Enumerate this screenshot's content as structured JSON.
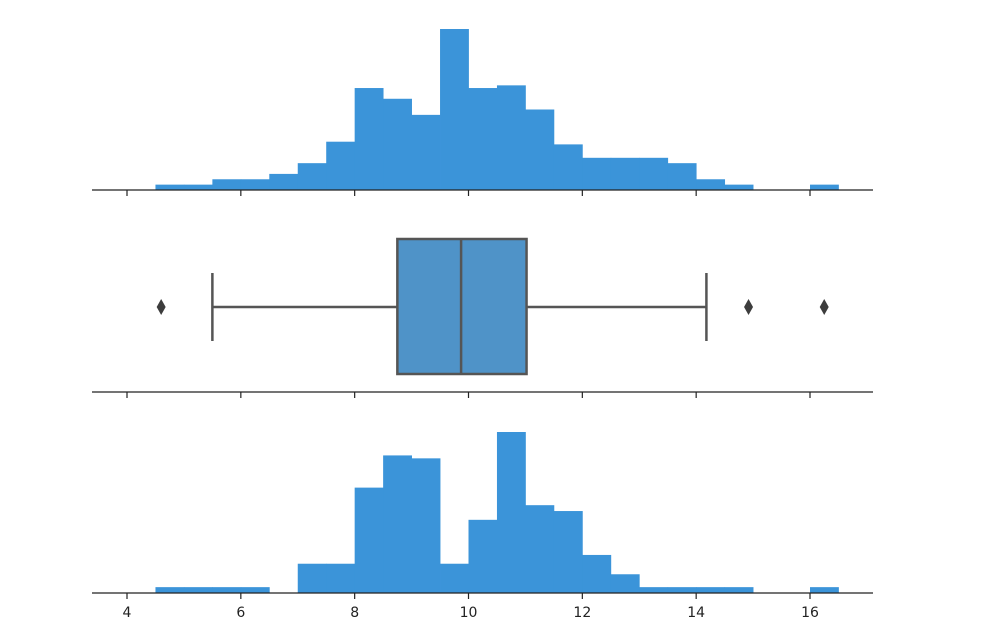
{
  "chart_data": [
    {
      "type": "histogram",
      "title": "",
      "xlabel": "",
      "ylabel": "",
      "xlim": [
        3.4,
        17.1
      ],
      "grid": false,
      "color": "#3b94d9",
      "bin_width": 0.5,
      "bins": [
        {
          "x0": 4.5,
          "x1": 5.0,
          "count": 1
        },
        {
          "x0": 5.0,
          "x1": 5.5,
          "count": 1
        },
        {
          "x0": 5.5,
          "x1": 6.0,
          "count": 2
        },
        {
          "x0": 6.0,
          "x1": 6.5,
          "count": 2
        },
        {
          "x0": 6.5,
          "x1": 7.0,
          "count": 3
        },
        {
          "x0": 7.0,
          "x1": 7.5,
          "count": 5
        },
        {
          "x0": 7.5,
          "x1": 8.0,
          "count": 9
        },
        {
          "x0": 8.0,
          "x1": 8.5,
          "count": 19
        },
        {
          "x0": 8.5,
          "x1": 9.0,
          "count": 17
        },
        {
          "x0": 9.0,
          "x1": 9.5,
          "count": 14
        },
        {
          "x0": 9.5,
          "x1": 10.0,
          "count": 30
        },
        {
          "x0": 10.0,
          "x1": 10.5,
          "count": 19
        },
        {
          "x0": 10.5,
          "x1": 11.0,
          "count": 19.5
        },
        {
          "x0": 11.0,
          "x1": 11.5,
          "count": 15
        },
        {
          "x0": 11.5,
          "x1": 12.0,
          "count": 8.5
        },
        {
          "x0": 12.0,
          "x1": 12.5,
          "count": 6
        },
        {
          "x0": 12.5,
          "x1": 13.0,
          "count": 6
        },
        {
          "x0": 13.0,
          "x1": 13.5,
          "count": 6
        },
        {
          "x0": 13.5,
          "x1": 14.0,
          "count": 5
        },
        {
          "x0": 14.0,
          "x1": 14.5,
          "count": 2
        },
        {
          "x0": 14.5,
          "x1": 15.0,
          "count": 1
        },
        {
          "x0": 16.0,
          "x1": 16.5,
          "count": 1
        }
      ]
    },
    {
      "type": "boxplot",
      "title": "",
      "xlabel": "",
      "ylabel": "",
      "xlim": [
        3.4,
        17.1
      ],
      "grid": false,
      "box_color": "#4f93c8",
      "line_color": "#555555",
      "whisker_low": 5.5,
      "q1": 8.75,
      "median": 9.87,
      "q3": 11.02,
      "whisker_high": 14.18,
      "outliers": [
        4.6,
        14.92,
        16.25
      ]
    },
    {
      "type": "histogram",
      "title": "",
      "xlabel": "",
      "ylabel": "",
      "xlim": [
        3.4,
        17.1
      ],
      "grid": false,
      "color": "#3b94d9",
      "bin_width": 0.5,
      "x_tick_labels": [
        "4",
        "6",
        "8",
        "10",
        "12",
        "14",
        "16"
      ],
      "x_ticks": [
        4,
        6,
        8,
        10,
        12,
        14,
        16
      ],
      "bins": [
        {
          "x0": 4.5,
          "x1": 5.0,
          "count": 1
        },
        {
          "x0": 5.0,
          "x1": 5.5,
          "count": 1
        },
        {
          "x0": 5.5,
          "x1": 6.0,
          "count": 1
        },
        {
          "x0": 6.0,
          "x1": 6.5,
          "count": 1
        },
        {
          "x0": 7.0,
          "x1": 7.5,
          "count": 5
        },
        {
          "x0": 7.5,
          "x1": 8.0,
          "count": 5
        },
        {
          "x0": 8.0,
          "x1": 8.5,
          "count": 18
        },
        {
          "x0": 8.5,
          "x1": 9.0,
          "count": 23.5
        },
        {
          "x0": 9.0,
          "x1": 9.5,
          "count": 23
        },
        {
          "x0": 9.5,
          "x1": 10.0,
          "count": 5
        },
        {
          "x0": 10.0,
          "x1": 10.5,
          "count": 12.5
        },
        {
          "x0": 10.5,
          "x1": 11.0,
          "count": 27.5
        },
        {
          "x0": 11.0,
          "x1": 11.5,
          "count": 15
        },
        {
          "x0": 11.5,
          "x1": 12.0,
          "count": 14
        },
        {
          "x0": 12.0,
          "x1": 12.5,
          "count": 6.5
        },
        {
          "x0": 12.5,
          "x1": 13.0,
          "count": 3.2
        },
        {
          "x0": 13.0,
          "x1": 13.5,
          "count": 1
        },
        {
          "x0": 13.5,
          "x1": 14.0,
          "count": 1
        },
        {
          "x0": 14.0,
          "x1": 14.5,
          "count": 1
        },
        {
          "x0": 14.5,
          "x1": 15.0,
          "count": 1
        },
        {
          "x0": 16.0,
          "x1": 16.5,
          "count": 1
        }
      ]
    }
  ]
}
